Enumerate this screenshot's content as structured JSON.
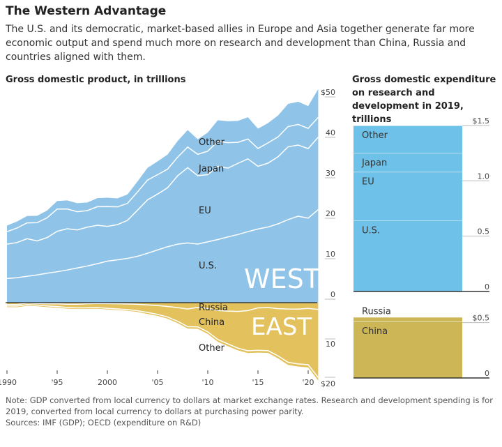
{
  "title": "The Western Advantage",
  "subtitle": "The U.S. and its democratic, market-based allies in Europe and Asia together generate far more economic output and spend much more on research and development than China, Russia and countries aligned with them.",
  "note": "Note: GDP converted from local currency to dollars at market exchange rates. Research and development spending is for 2019, converted from local currency to dollars at purchasing power parity.",
  "sources": "Sources: IMF (GDP); OECD (expenditure on R&D)",
  "chart_data": [
    {
      "type": "area",
      "title": "Gross domestic product, in trillions",
      "stacked": true,
      "x": [
        1990,
        1991,
        1992,
        1993,
        1994,
        1995,
        1996,
        1997,
        1998,
        1999,
        2000,
        2001,
        2002,
        2003,
        2004,
        2005,
        2006,
        2007,
        2008,
        2009,
        2010,
        2011,
        2012,
        2013,
        2014,
        2015,
        2016,
        2017,
        2018,
        2019,
        2020,
        2021
      ],
      "x_tick_labels": [
        "1990",
        "'95",
        "2000",
        "'05",
        "'10",
        "'15",
        "'20"
      ],
      "x_tick_values": [
        1990,
        1995,
        2000,
        2005,
        2010,
        2015,
        2020
      ],
      "y_tick_labels_west": [
        "0",
        "10",
        "20",
        "30",
        "40",
        "$50"
      ],
      "y_tick_values_west": [
        0,
        10,
        20,
        30,
        40,
        50
      ],
      "y_tick_labels_east": [
        "10",
        "$20"
      ],
      "y_tick_values_east": [
        10,
        20
      ],
      "groups": [
        {
          "name": "WEST",
          "color": "#8fc4e8",
          "direction": "up",
          "series": [
            {
              "name": "U.S.",
              "values": [
                5.96,
                6.16,
                6.52,
                6.86,
                7.29,
                7.64,
                8.07,
                8.58,
                9.06,
                9.63,
                10.25,
                10.58,
                10.94,
                11.46,
                12.21,
                13.04,
                13.82,
                14.47,
                14.77,
                14.48,
                15.05,
                15.6,
                16.25,
                16.84,
                17.55,
                18.21,
                18.7,
                19.48,
                20.53,
                21.37,
                20.89,
                23.0
              ]
            },
            {
              "name": "EU",
              "values": [
                8.5,
                8.7,
                9.3,
                8.4,
                8.8,
                10.0,
                10.2,
                9.4,
                9.6,
                9.5,
                8.6,
                8.7,
                9.4,
                11.4,
                13.2,
                13.8,
                14.6,
                16.9,
                18.6,
                16.9,
                16.6,
                18.1,
                17.0,
                17.6,
                18.0,
                15.5,
                15.8,
                16.6,
                18.0,
                17.6,
                17.2,
                17.9
              ]
            },
            {
              "name": "Japan",
              "values": [
                3.1,
                3.6,
                3.9,
                4.5,
                4.9,
                5.5,
                4.9,
                4.5,
                4.1,
                4.6,
                4.9,
                4.4,
                4.2,
                4.5,
                4.9,
                4.8,
                4.6,
                4.6,
                5.1,
                5.3,
                5.8,
                6.2,
                6.3,
                5.2,
                4.9,
                4.4,
                5.0,
                4.9,
                5.0,
                5.1,
                5.0,
                4.9
              ]
            },
            {
              "name": "Other",
              "values": [
                1.5,
                1.6,
                1.7,
                1.7,
                1.8,
                2.0,
                2.1,
                2.1,
                2.0,
                2.1,
                2.2,
                2.1,
                2.2,
                2.6,
                3.0,
                3.3,
                3.6,
                4.0,
                4.2,
                3.7,
                4.6,
                5.2,
                5.3,
                5.3,
                5.4,
                4.9,
                4.9,
                5.3,
                5.6,
                5.6,
                5.5,
                7.0
              ]
            }
          ]
        },
        {
          "name": "EAST",
          "color": "#e3c25e",
          "direction": "down",
          "series": [
            {
              "name": "Russia",
              "values": [
                0.5,
                0.5,
                0.1,
                0.2,
                0.3,
                0.3,
                0.4,
                0.4,
                0.3,
                0.2,
                0.26,
                0.3,
                0.35,
                0.43,
                0.59,
                0.76,
                0.99,
                1.3,
                1.66,
                1.22,
                1.52,
                2.05,
                2.21,
                2.29,
                2.06,
                1.36,
                1.28,
                1.57,
                1.66,
                1.69,
                1.49,
                1.78
              ]
            },
            {
              "name": "China",
              "values": [
                0.36,
                0.38,
                0.43,
                0.44,
                0.56,
                0.73,
                0.86,
                0.96,
                1.03,
                1.09,
                1.21,
                1.34,
                1.47,
                1.66,
                1.96,
                2.29,
                2.75,
                3.55,
                4.59,
                5.1,
                6.09,
                7.55,
                8.53,
                9.57,
                10.48,
                11.06,
                11.23,
                12.31,
                13.89,
                14.28,
                14.69,
                17.73
              ]
            },
            {
              "name": "Other",
              "values": [
                0.3,
                0.3,
                0.3,
                0.3,
                0.3,
                0.3,
                0.3,
                0.3,
                0.3,
                0.3,
                0.3,
                0.3,
                0.3,
                0.35,
                0.4,
                0.4,
                0.45,
                0.5,
                0.5,
                0.5,
                0.55,
                0.6,
                0.6,
                0.6,
                0.6,
                0.6,
                0.6,
                0.65,
                0.7,
                0.7,
                0.7,
                0.8
              ]
            }
          ]
        }
      ]
    },
    {
      "type": "bar",
      "stacked": true,
      "title": "Gross domestic expenditure on research and development in 2019, trillions",
      "bars": [
        {
          "name": "WEST",
          "color": "#6ec1e8",
          "y_tick_labels": [
            "0",
            "0.5",
            "1.0",
            "$1.5"
          ],
          "y_tick_values": [
            0,
            0.5,
            1.0,
            1.5
          ],
          "segments": [
            {
              "name": "U.S.",
              "value": 0.64
            },
            {
              "name": "EU",
              "value": 0.44
            },
            {
              "name": "Japan",
              "value": 0.17
            },
            {
              "name": "Other",
              "value": 0.25
            }
          ]
        },
        {
          "name": "EAST",
          "color": "#cdb656",
          "y_tick_labels": [
            "0",
            "$0.5"
          ],
          "y_tick_values": [
            0,
            0.5
          ],
          "segments": [
            {
              "name": "China",
              "value": 0.51
            },
            {
              "name": "Russia",
              "value": 0.04
            }
          ]
        }
      ]
    }
  ]
}
